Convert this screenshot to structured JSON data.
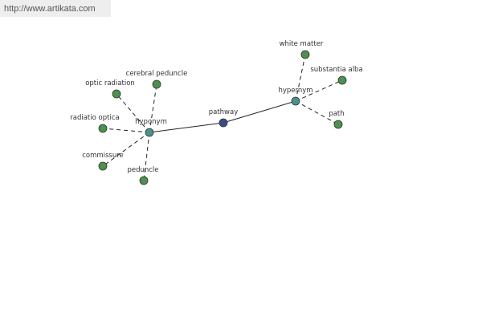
{
  "header": {
    "url": "http://www.artikata.com"
  },
  "nodes": [
    {
      "label": "pathway"
    },
    {
      "label": "hyponym"
    },
    {
      "label": "hypernym"
    },
    {
      "label": "white matter"
    },
    {
      "label": "substantia alba"
    },
    {
      "label": "path"
    },
    {
      "label": "cerebral peduncle"
    },
    {
      "label": "optic radiation"
    },
    {
      "label": "radiatio optica"
    },
    {
      "label": "commissure"
    },
    {
      "label": "peduncle"
    }
  ]
}
